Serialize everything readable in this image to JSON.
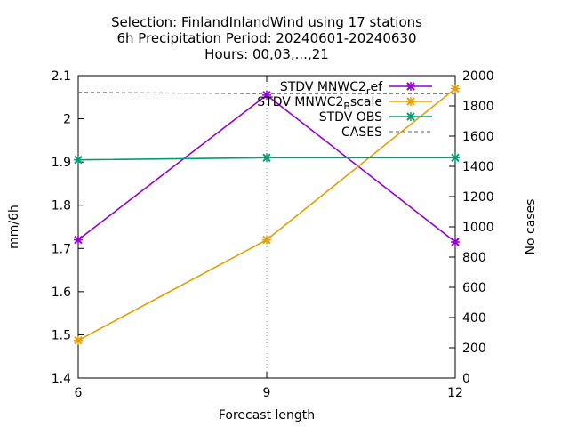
{
  "chart_data": {
    "type": "line",
    "title_lines": [
      "Selection: FinlandInlandWind using    17 stations",
      "6h Precipitation   Period: 20240601-20240630",
      "Hours: 00,03,...,21"
    ],
    "xlabel": "Forecast length",
    "ylabel": "mm/6h",
    "y2label": "No cases",
    "x": [
      6,
      9,
      12
    ],
    "xlim": [
      6,
      12
    ],
    "ylim": [
      1.4,
      2.1
    ],
    "y2lim": [
      0,
      2000
    ],
    "xticks": [
      "6",
      "9",
      "12"
    ],
    "yticks": [
      "1.4",
      "1.5",
      "1.6",
      "1.7",
      "1.8",
      "1.9",
      "2",
      "2.1"
    ],
    "y2ticks": [
      "0",
      "200",
      "400",
      "600",
      "800",
      "1000",
      "1200",
      "1400",
      "1600",
      "1800",
      "2000"
    ],
    "legend_position": "top-right",
    "grid": "vertical line at x=9 only",
    "series": [
      {
        "name": "STDV MNWC2_ref",
        "legend_main": "STDV MNWC2",
        "legend_sub": "r",
        "legend_tail": "ef",
        "axis": "y",
        "values": [
          1.72,
          2.055,
          1.715
        ],
        "color": "#9400d3",
        "style": "solid",
        "marker": "x"
      },
      {
        "name": "STDV MNWC2_Bscale",
        "legend_main": "STDV MNWC2",
        "legend_sub": "B",
        "legend_tail": "scale",
        "axis": "y",
        "values": [
          1.487,
          1.72,
          2.07
        ],
        "color": "#e69f00",
        "style": "solid",
        "marker": "x"
      },
      {
        "name": "STDV OBS",
        "legend_main": "STDV OBS",
        "legend_sub": "",
        "legend_tail": "",
        "axis": "y",
        "values": [
          1.905,
          1.91,
          1.91
        ],
        "color": "#009e73",
        "style": "solid",
        "marker": "x"
      },
      {
        "name": "CASES",
        "legend_main": "CASES",
        "legend_sub": "",
        "legend_tail": "",
        "axis": "y2",
        "values": [
          1890,
          1880,
          1880
        ],
        "color": "#808080",
        "style": "dashed",
        "marker": "none"
      }
    ]
  }
}
